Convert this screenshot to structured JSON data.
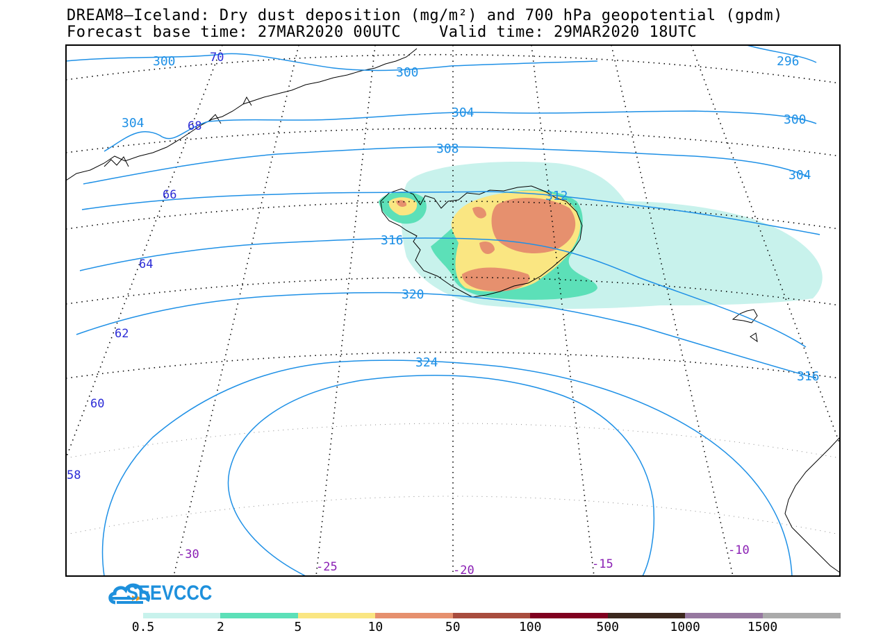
{
  "title": {
    "line1": "DREAM8–Iceland: Dry dust deposition (mg/m²) and 700 hPa geopotential (gpdm)",
    "line2": "Forecast base time: 27MAR2020 00UTC    Valid time: 29MAR2020 18UTC"
  },
  "logo": {
    "text": "SEEVCCC",
    "icon": "cloud-logo-icon"
  },
  "contours": {
    "labels": [
      "296",
      "300",
      "300",
      "300",
      "304",
      "304",
      "304",
      "308",
      "312",
      "316",
      "316",
      "320",
      "324"
    ],
    "color": "#1e90e6"
  },
  "latitude_labels": [
    "70",
    "68",
    "66",
    "64",
    "62",
    "60",
    "58"
  ],
  "longitude_labels": [
    "-30",
    "-25",
    "-20",
    "-15",
    "-10"
  ],
  "colors": {
    "latitude_label": "#2b2bd6",
    "longitude_label": "#8a1fb4",
    "contour": "#1e90e6"
  },
  "colorbar": {
    "labels": [
      "0.5",
      "2",
      "5",
      "10",
      "50",
      "100",
      "500",
      "1000",
      "1500"
    ],
    "colors": [
      "#c8f2ec",
      "#5ce0b8",
      "#fae682",
      "#e6906e",
      "#a84c3e",
      "#800020",
      "#3c281e",
      "#9678a0",
      "#aaaaaa"
    ]
  }
}
